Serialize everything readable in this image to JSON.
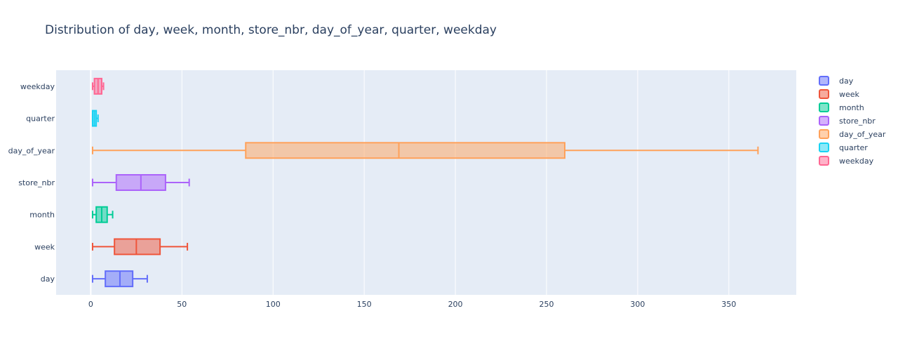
{
  "chart_data": {
    "type": "box",
    "orientation": "horizontal",
    "title": "Distribution of day, week, month, store_nbr, day_of_year, quarter, weekday",
    "xlabel": "",
    "ylabel": "",
    "xlim": [
      -19,
      387
    ],
    "x_ticks": [
      0,
      50,
      100,
      150,
      200,
      250,
      300,
      350
    ],
    "grid": true,
    "legend_position": "right",
    "series": [
      {
        "name": "day",
        "color": "#636efa",
        "min": 1,
        "q1": 8,
        "median": 16,
        "q3": 23,
        "max": 31
      },
      {
        "name": "week",
        "color": "#ef553b",
        "min": 1,
        "q1": 13,
        "median": 25,
        "q3": 38,
        "max": 53
      },
      {
        "name": "month",
        "color": "#00cc96",
        "min": 1,
        "q1": 3,
        "median": 6,
        "q3": 9,
        "max": 12
      },
      {
        "name": "store_nbr",
        "color": "#ab63fa",
        "min": 1,
        "q1": 14,
        "median": 27.5,
        "q3": 41,
        "max": 54
      },
      {
        "name": "day_of_year",
        "color": "#ffa15a",
        "min": 1,
        "q1": 85,
        "median": 169,
        "q3": 260,
        "max": 366
      },
      {
        "name": "quarter",
        "color": "#19d3f3",
        "min": 1,
        "q1": 1,
        "median": 2,
        "q3": 3,
        "max": 4
      },
      {
        "name": "weekday",
        "color": "#ff6692",
        "min": 1,
        "q1": 2,
        "median": 4,
        "q3": 6,
        "max": 7
      }
    ]
  }
}
